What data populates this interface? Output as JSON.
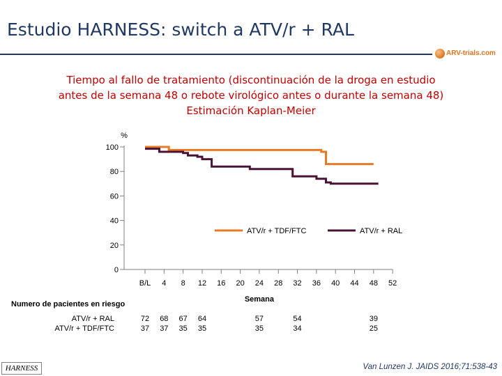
{
  "slide": {
    "title": "Estudio HARNESS: switch a ATV/r + RAL",
    "logo_text": "ARV-trials.com",
    "subtitle_lines": [
      "Tiempo al fallo de tratamiento (discontinuación de la droga en estudio",
      "antes de la semana 48 o rebote virológico antes o durante la semana 48)",
      "Estimación Kaplan-Meier"
    ],
    "study_tag": "HARNESS",
    "citation": "Van Lunzen J. JAIDS 2016;71:538-43"
  },
  "chart_data": {
    "type": "line",
    "step": true,
    "ylabel": "%",
    "xlabel": "Semana",
    "ylim": [
      0,
      100
    ],
    "yticks": [
      0,
      20,
      40,
      60,
      80,
      100
    ],
    "xlim": [
      -2,
      52
    ],
    "xticks": [
      {
        "value": 0,
        "label": "B/L"
      },
      {
        "value": 4,
        "label": "4"
      },
      {
        "value": 8,
        "label": "8"
      },
      {
        "value": 12,
        "label": "12"
      },
      {
        "value": 16,
        "label": "16"
      },
      {
        "value": 20,
        "label": "20"
      },
      {
        "value": 24,
        "label": "24"
      },
      {
        "value": 28,
        "label": "28"
      },
      {
        "value": 32,
        "label": "32"
      },
      {
        "value": 36,
        "label": "36"
      },
      {
        "value": 40,
        "label": "40"
      },
      {
        "value": 44,
        "label": "44"
      },
      {
        "value": 48,
        "label": "48"
      },
      {
        "value": 52,
        "label": "52"
      }
    ],
    "legend_position": "center-right",
    "series": [
      {
        "name": "ATV/r + TDF/FTC",
        "color": "#e97a25",
        "points": [
          [
            0,
            100
          ],
          [
            5,
            100
          ],
          [
            5,
            97.5
          ],
          [
            37,
            97.5
          ],
          [
            37,
            96
          ],
          [
            38,
            96
          ],
          [
            38,
            86
          ],
          [
            48,
            86
          ]
        ]
      },
      {
        "name": "ATV/r + RAL",
        "color": "#4a1336",
        "points": [
          [
            0,
            98.5
          ],
          [
            3,
            98.5
          ],
          [
            3,
            96
          ],
          [
            8,
            96
          ],
          [
            8,
            95
          ],
          [
            9,
            95
          ],
          [
            9,
            93
          ],
          [
            11,
            93
          ],
          [
            11,
            92
          ],
          [
            12,
            92
          ],
          [
            12,
            90
          ],
          [
            14,
            90
          ],
          [
            14,
            84
          ],
          [
            22,
            84
          ],
          [
            22,
            82
          ],
          [
            31,
            82
          ],
          [
            31,
            76
          ],
          [
            36,
            76
          ],
          [
            36,
            74
          ],
          [
            38,
            74
          ],
          [
            38,
            71
          ],
          [
            39,
            71
          ],
          [
            39,
            70
          ],
          [
            49,
            70
          ]
        ]
      }
    ]
  },
  "risk_table": {
    "heading": "Numero de pacientes en riesgo",
    "rows": [
      {
        "label": "ATV/r + RAL",
        "values": [
          {
            "week": 0,
            "n": "72"
          },
          {
            "week": 4,
            "n": "68"
          },
          {
            "week": 8,
            "n": "67"
          },
          {
            "week": 12,
            "n": "64"
          },
          {
            "week": 24,
            "n": "57"
          },
          {
            "week": 32,
            "n": "54"
          },
          {
            "week": 48,
            "n": "39"
          }
        ]
      },
      {
        "label": "ATV/r + TDF/FTC",
        "values": [
          {
            "week": 0,
            "n": "37"
          },
          {
            "week": 4,
            "n": "37"
          },
          {
            "week": 8,
            "n": "35"
          },
          {
            "week": 12,
            "n": "35"
          },
          {
            "week": 24,
            "n": "35"
          },
          {
            "week": 32,
            "n": "34"
          },
          {
            "week": 48,
            "n": "25"
          }
        ]
      }
    ]
  }
}
